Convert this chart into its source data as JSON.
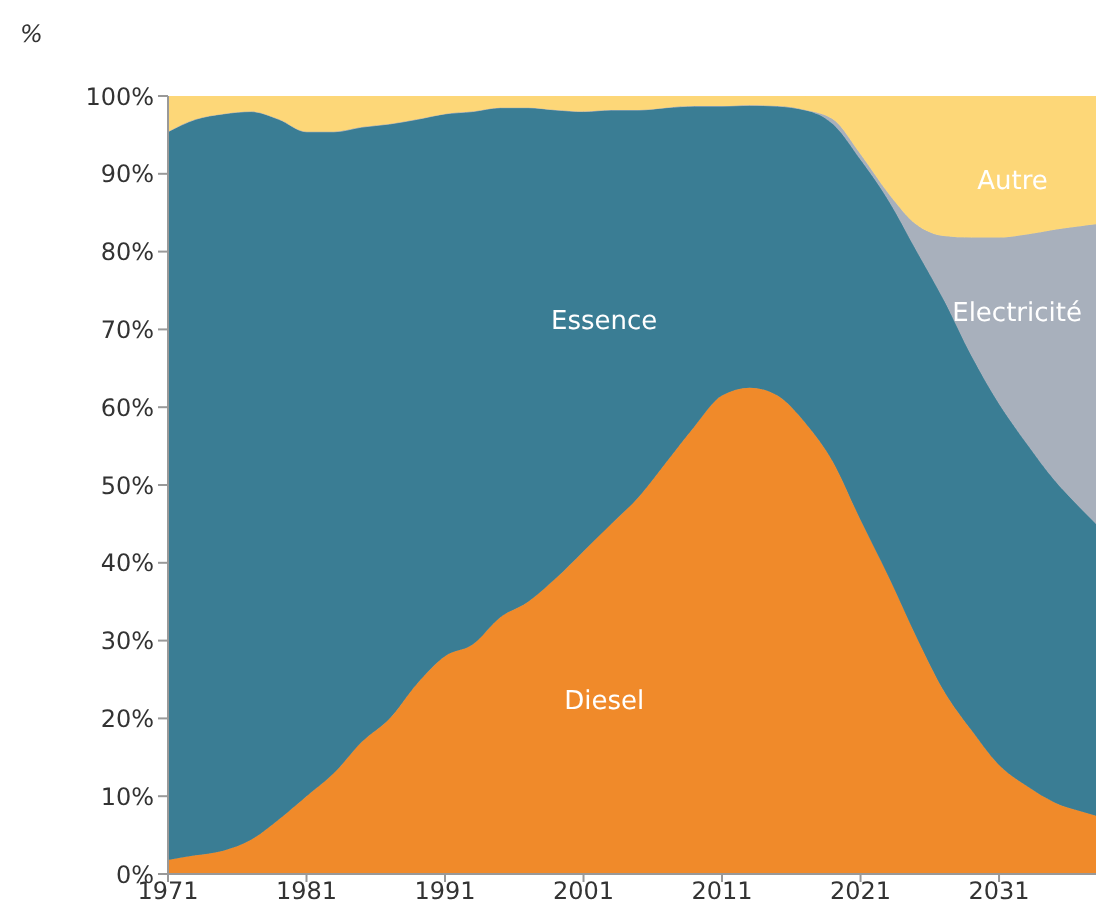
{
  "chart_data": {
    "type": "area",
    "stacked": true,
    "ylabel": "%",
    "legend": false,
    "grid": false,
    "x": [
      1971,
      1973,
      1975,
      1977,
      1979,
      1981,
      1983,
      1985,
      1987,
      1989,
      1991,
      1993,
      1995,
      1997,
      1999,
      2001,
      2003,
      2005,
      2007,
      2009,
      2011,
      2013,
      2015,
      2017,
      2019,
      2021,
      2023,
      2025,
      2027,
      2029,
      2031,
      2033,
      2035,
      2037,
      2038
    ],
    "series": [
      {
        "name": "Diesel",
        "color": "#f08a2a",
        "values": [
          1.8,
          2.4,
          3,
          4.4,
          7,
          10,
          13,
          17,
          20,
          24.5,
          28,
          29.5,
          33,
          35,
          38,
          41.5,
          45,
          48.5,
          53,
          57.5,
          61.5,
          62.5,
          61.5,
          58,
          53,
          45.5,
          38.3,
          30.6,
          23.6,
          18.5,
          14,
          11.3,
          9.2,
          8,
          7.5
        ]
      },
      {
        "name": "Essence",
        "color": "#3a7d94",
        "values": [
          93.6,
          94.6,
          94.7,
          93.6,
          90,
          85.4,
          82.4,
          79,
          76.4,
          72.5,
          69.7,
          68.5,
          65.5,
          63.5,
          60.2,
          56.5,
          53.2,
          49.7,
          45.5,
          41.2,
          37.2,
          36.3,
          37.2,
          40.2,
          43.4,
          46.3,
          48.3,
          49.6,
          50.2,
          48.1,
          46.4,
          44,
          41.4,
          38.8,
          37.5
        ]
      },
      {
        "name": "Electricité",
        "color": "#a8b0bc",
        "values": [
          0,
          0,
          0,
          0,
          0,
          0,
          0,
          0,
          0,
          0,
          0,
          0,
          0,
          0,
          0,
          0,
          0,
          0,
          0,
          0,
          0,
          0,
          0,
          0,
          0.6,
          0.7,
          0.9,
          3.3,
          8.2,
          15.2,
          21.4,
          26.9,
          32.2,
          36.5,
          38.5
        ]
      },
      {
        "name": "Autre",
        "color": "#fdd778",
        "values": [
          4.6,
          3,
          2.3,
          2,
          3,
          4.6,
          4.6,
          4,
          3.6,
          3,
          2.3,
          2,
          1.5,
          1.5,
          1.8,
          2,
          1.8,
          1.8,
          1.5,
          1.3,
          1.3,
          1.2,
          1.3,
          1.8,
          3,
          7.5,
          12.5,
          16.5,
          18,
          18.2,
          18.2,
          17.8,
          17.2,
          16.7,
          16.5
        ]
      }
    ],
    "xlim": [
      1971,
      2038
    ],
    "xticks": [
      1971,
      1981,
      1991,
      2001,
      2011,
      2021,
      2031
    ],
    "ylim": [
      0,
      100
    ],
    "yticks": [
      {
        "value": 0,
        "label": "0%"
      },
      {
        "value": 10,
        "label": "10%"
      },
      {
        "value": 20,
        "label": "20%"
      },
      {
        "value": 30,
        "label": "30%"
      },
      {
        "value": 40,
        "label": "40%"
      },
      {
        "value": 50,
        "label": "50%"
      },
      {
        "value": 60,
        "label": "60%"
      },
      {
        "value": 70,
        "label": "70%"
      },
      {
        "value": 80,
        "label": "80%"
      },
      {
        "value": 90,
        "label": "90%"
      },
      {
        "value": 100,
        "label": "100%"
      }
    ]
  }
}
